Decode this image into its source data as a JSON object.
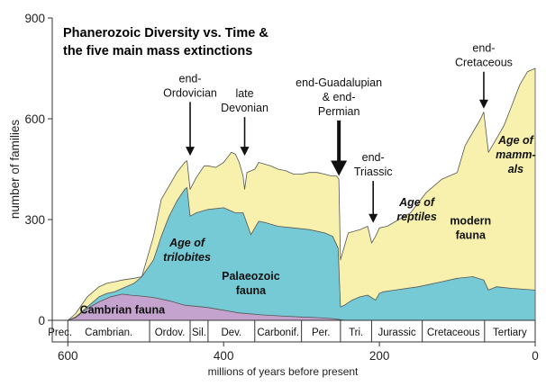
{
  "chart_data": {
    "type": "area",
    "title_lines": [
      "Phanerozoic Diversity vs. Time &",
      "the five main mass extinctions"
    ],
    "xlabel": "millions of years before present",
    "ylabel": "number of families",
    "xlim": [
      620,
      0
    ],
    "ylim": [
      0,
      900
    ],
    "x_ticks": [
      600,
      400,
      200,
      0
    ],
    "y_ticks": [
      0,
      300,
      600,
      900
    ],
    "grid": false,
    "colors": {
      "cambrian": "#c4a3cf",
      "palaeozoic": "#76cad5",
      "modern": "#f7f1ad",
      "outline": "#555555",
      "arrow": "#111111"
    },
    "series": [
      {
        "name": "Cambrian fauna",
        "x": [
          600,
          590,
          575,
          560,
          545,
          530,
          520,
          505,
          490,
          470,
          450,
          420,
          400,
          380,
          350,
          320,
          300,
          280,
          260,
          250,
          245
        ],
        "values": [
          0,
          8,
          35,
          55,
          70,
          78,
          75,
          72,
          68,
          58,
          45,
          38,
          30,
          22,
          16,
          12,
          10,
          8,
          5,
          2,
          0
        ]
      },
      {
        "name": "Palaeozoic fauna",
        "x": [
          600,
          590,
          575,
          560,
          550,
          540,
          530,
          515,
          505,
          490,
          480,
          470,
          460,
          450,
          447,
          443,
          435,
          420,
          400,
          385,
          375,
          365,
          355,
          345,
          330,
          310,
          290,
          270,
          260,
          253,
          250,
          245,
          235,
          225,
          215,
          205,
          200,
          195,
          180,
          150,
          120,
          100,
          80,
          66,
          60,
          50,
          30,
          0
        ],
        "values": [
          0,
          10,
          40,
          70,
          80,
          85,
          95,
          110,
          130,
          180,
          250,
          310,
          355,
          390,
          395,
          310,
          320,
          330,
          335,
          320,
          320,
          255,
          295,
          290,
          280,
          275,
          270,
          260,
          250,
          215,
          40,
          45,
          60,
          70,
          75,
          60,
          80,
          85,
          90,
          100,
          115,
          125,
          130,
          120,
          90,
          100,
          95,
          90
        ]
      },
      {
        "name": "modern fauna (total)",
        "x": [
          600,
          590,
          575,
          560,
          550,
          540,
          530,
          515,
          505,
          490,
          480,
          470,
          460,
          450,
          447,
          443,
          435,
          425,
          420,
          410,
          400,
          390,
          385,
          380,
          375,
          373,
          370,
          360,
          355,
          340,
          330,
          320,
          310,
          300,
          290,
          280,
          270,
          262,
          255,
          252,
          250,
          245,
          240,
          225,
          215,
          210,
          205,
          200,
          190,
          160,
          140,
          120,
          100,
          90,
          80,
          75,
          70,
          66,
          64,
          60,
          50,
          40,
          30,
          20,
          10,
          0
        ],
        "values": [
          0,
          20,
          70,
          100,
          110,
          115,
          120,
          125,
          130,
          250,
          360,
          400,
          440,
          470,
          475,
          390,
          425,
          460,
          460,
          455,
          470,
          500,
          495,
          470,
          430,
          390,
          440,
          450,
          470,
          460,
          450,
          445,
          435,
          435,
          440,
          440,
          435,
          430,
          430,
          420,
          180,
          220,
          260,
          270,
          280,
          230,
          250,
          275,
          280,
          320,
          380,
          420,
          440,
          520,
          560,
          580,
          600,
          620,
          580,
          500,
          540,
          580,
          640,
          700,
          740,
          750
        ]
      }
    ],
    "region_labels": [
      {
        "text": "Cambrian fauna",
        "x": 530,
        "y": 20,
        "style": "bold"
      },
      {
        "text": [
          "Age of",
          "trilobites"
        ],
        "x": 447,
        "y": 220,
        "style": "bold-italic"
      },
      {
        "text": [
          "Palaeozoic",
          "fauna"
        ],
        "x": 365,
        "y": 120,
        "style": "bold"
      },
      {
        "text": [
          "Age of",
          "reptiles"
        ],
        "x": 152,
        "y": 340,
        "style": "bold-italic"
      },
      {
        "text": [
          "modern",
          "fauna"
        ],
        "x": 83,
        "y": 285,
        "style": "bold"
      },
      {
        "text": [
          "Age of",
          "mamm-",
          "als"
        ],
        "x": 25,
        "y": 525,
        "style": "bold-italic"
      }
    ],
    "extinctions": [
      {
        "label": [
          "end-",
          "Ordovician"
        ],
        "x": 443,
        "y_top": 650,
        "y_tip": 490,
        "heavy": false
      },
      {
        "label": [
          "late",
          "Devonian"
        ],
        "x": 373,
        "y_top": 605,
        "y_tip": 490,
        "heavy": false
      },
      {
        "label": [
          "end-Guadalupian",
          "& end-",
          "Permian"
        ],
        "x": 252,
        "y_top": 595,
        "y_tip": 430,
        "heavy": true
      },
      {
        "label": [
          "end-",
          "Triassic"
        ],
        "x": 208,
        "y_top": 415,
        "y_tip": 290,
        "heavy": false
      },
      {
        "label": [
          "end-",
          "Cretaceous"
        ],
        "x": 66,
        "y_top": 740,
        "y_tip": 630,
        "heavy": false
      }
    ],
    "periods": [
      {
        "label": "Prec.",
        "start": 620,
        "end": 600
      },
      {
        "label": "Cambrian.",
        "start": 600,
        "end": 495
      },
      {
        "label": "Ordov.",
        "start": 495,
        "end": 443
      },
      {
        "label": "Sil.",
        "start": 443,
        "end": 420
      },
      {
        "label": "Dev.",
        "start": 420,
        "end": 360
      },
      {
        "label": "Carbonif.",
        "start": 360,
        "end": 300
      },
      {
        "label": "Per.",
        "start": 300,
        "end": 250
      },
      {
        "label": "Tri.",
        "start": 250,
        "end": 210
      },
      {
        "label": "Jurassic",
        "start": 210,
        "end": 145
      },
      {
        "label": "Cretaceous",
        "start": 145,
        "end": 65
      },
      {
        "label": "Tertiary",
        "start": 65,
        "end": 0
      }
    ]
  }
}
